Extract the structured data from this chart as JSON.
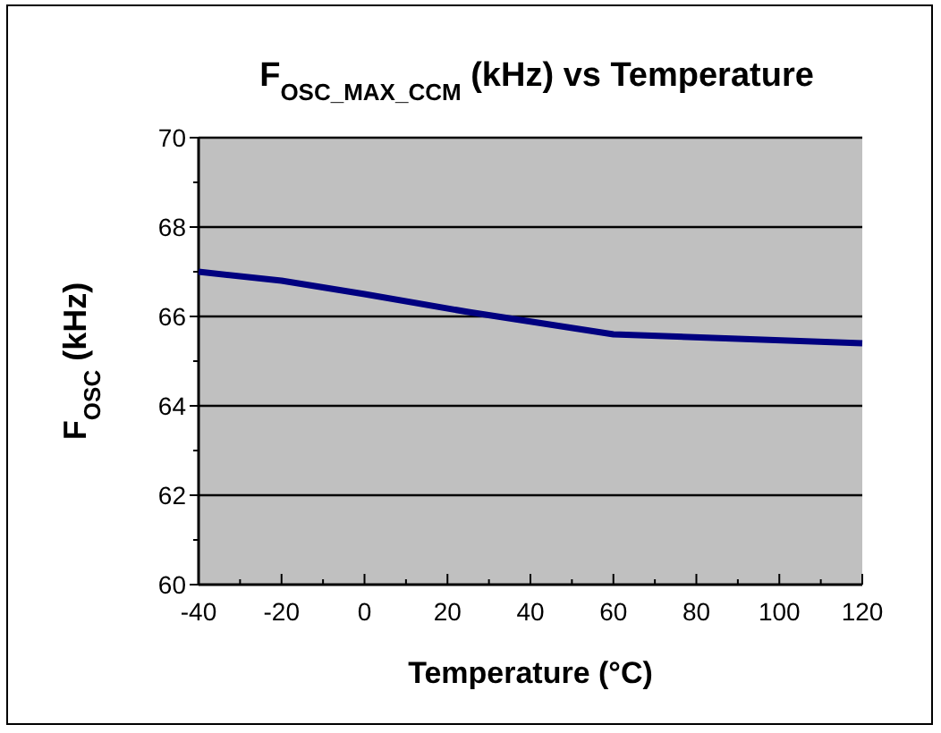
{
  "chart_data": {
    "type": "line",
    "title": "F$_{OSC_MAX_CCM}$ (kHz)  vs Temperature",
    "xlabel": "Temperature (°C)",
    "ylabel": "F$_{OSC}$ (kHz)",
    "x": [
      -40,
      -20,
      0,
      25,
      60,
      90,
      120
    ],
    "series": [
      {
        "color": "#000080",
        "values": [
          67.0,
          66.8,
          66.5,
          66.1,
          65.6,
          65.5,
          65.4
        ]
      }
    ],
    "xlim": [
      -40,
      120
    ],
    "xticks": [
      -40,
      {
        "value": -30,
        "label": null
      },
      -20,
      {
        "value": -10,
        "label": null
      },
      0,
      {
        "value": 10,
        "label": null
      },
      20,
      {
        "value": 30,
        "label": null
      },
      40,
      {
        "value": 50,
        "label": null
      },
      60,
      {
        "value": 70,
        "label": null
      },
      80,
      {
        "value": 90,
        "label": null
      },
      100,
      {
        "value": 110,
        "label": null
      },
      120
    ],
    "ylim": [
      60,
      70
    ],
    "yticks": [
      60,
      {
        "value": 61,
        "label": null
      },
      62,
      {
        "value": 63,
        "label": null
      },
      64,
      {
        "value": 65,
        "label": null
      },
      66,
      {
        "value": 67,
        "label": null
      },
      68,
      {
        "value": 69,
        "label": null
      },
      70
    ],
    "grid": "y",
    "marker": "none",
    "line_style": "solid"
  }
}
